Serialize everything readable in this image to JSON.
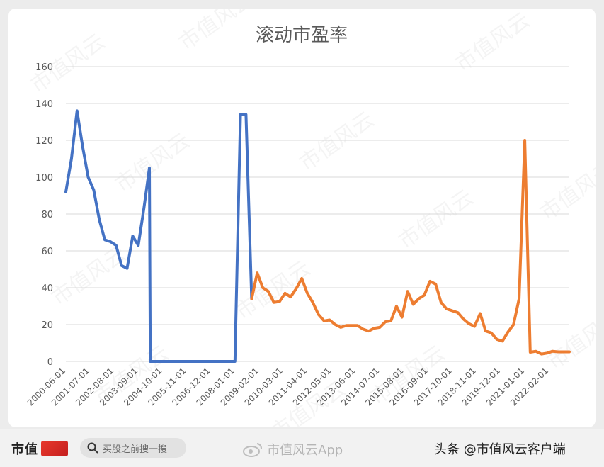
{
  "chart_data": {
    "type": "line",
    "title": "滚动市盈率",
    "ylim": [
      0,
      160
    ],
    "yticks": [
      0,
      20,
      40,
      60,
      80,
      100,
      120,
      140,
      160
    ],
    "xlim": [
      "2000-06-01",
      "2023-01-01"
    ],
    "xticks": [
      "2000-06-01",
      "2001-07-01",
      "2002-08-01",
      "2003-09-01",
      "2004-10-01",
      "2005-11-01",
      "2006-12-01",
      "2008-01-01",
      "2009-02-01",
      "2010-03-01",
      "2011-04-01",
      "2012-05-01",
      "2013-06-01",
      "2014-07-01",
      "2015-08-01",
      "2016-09-01",
      "2017-10-01",
      "2018-11-01",
      "2019-12-01",
      "2021-01-01",
      "2022-02-01"
    ],
    "grid": true,
    "series": [
      {
        "color": "#4472c4",
        "points": [
          [
            "2000-06-01",
            92
          ],
          [
            "2000-09-01",
            110
          ],
          [
            "2000-12-01",
            136
          ],
          [
            "2001-03-01",
            117
          ],
          [
            "2001-06-01",
            100
          ],
          [
            "2001-09-01",
            93
          ],
          [
            "2001-12-01",
            77
          ],
          [
            "2002-03-01",
            66
          ],
          [
            "2002-06-01",
            65
          ],
          [
            "2002-09-01",
            63
          ],
          [
            "2002-12-01",
            52
          ],
          [
            "2003-03-01",
            50.5
          ],
          [
            "2003-06-01",
            68
          ],
          [
            "2003-09-01",
            63
          ],
          [
            "2003-12-01",
            83
          ],
          [
            "2004-03-01",
            105
          ],
          [
            "2004-03-15",
            0
          ],
          [
            "2008-01-01",
            0
          ],
          [
            "2008-04-01",
            134
          ],
          [
            "2008-07-01",
            134
          ],
          [
            "2008-10-01",
            34
          ]
        ]
      },
      {
        "color": "#ed7d31",
        "points": [
          [
            "2008-10-01",
            34
          ],
          [
            "2009-01-01",
            48
          ],
          [
            "2009-04-01",
            40
          ],
          [
            "2009-07-01",
            38
          ],
          [
            "2009-10-01",
            32
          ],
          [
            "2010-01-01",
            32.5
          ],
          [
            "2010-04-01",
            37
          ],
          [
            "2010-07-01",
            35
          ],
          [
            "2010-10-01",
            39.5
          ],
          [
            "2011-01-01",
            45
          ],
          [
            "2011-04-01",
            37
          ],
          [
            "2011-07-01",
            32
          ],
          [
            "2011-10-01",
            25.5
          ],
          [
            "2012-01-01",
            22
          ],
          [
            "2012-04-01",
            22.5
          ],
          [
            "2012-07-01",
            20
          ],
          [
            "2012-10-01",
            18.5
          ],
          [
            "2013-01-01",
            19.5
          ],
          [
            "2013-04-01",
            19.5
          ],
          [
            "2013-07-01",
            19.5
          ],
          [
            "2013-10-01",
            17.5
          ],
          [
            "2014-01-01",
            16.5
          ],
          [
            "2014-04-01",
            18
          ],
          [
            "2014-07-01",
            18.5
          ],
          [
            "2014-10-01",
            21.5
          ],
          [
            "2015-01-01",
            22
          ],
          [
            "2015-04-01",
            30
          ],
          [
            "2015-07-01",
            24
          ],
          [
            "2015-10-01",
            38
          ],
          [
            "2016-01-01",
            31
          ],
          [
            "2016-04-01",
            34
          ],
          [
            "2016-07-01",
            36
          ],
          [
            "2016-10-01",
            43.5
          ],
          [
            "2017-01-01",
            42
          ],
          [
            "2017-04-01",
            32
          ],
          [
            "2017-07-01",
            28.5
          ],
          [
            "2017-10-01",
            27.5
          ],
          [
            "2018-01-01",
            26.5
          ],
          [
            "2018-04-01",
            23
          ],
          [
            "2018-07-01",
            20.5
          ],
          [
            "2018-10-01",
            19
          ],
          [
            "2019-01-01",
            26
          ],
          [
            "2019-04-01",
            16.5
          ],
          [
            "2019-07-01",
            15.5
          ],
          [
            "2019-10-01",
            12
          ],
          [
            "2020-01-01",
            11
          ],
          [
            "2020-04-01",
            16
          ],
          [
            "2020-07-01",
            20
          ],
          [
            "2020-10-01",
            34
          ],
          [
            "2021-01-01",
            120
          ],
          [
            "2021-04-01",
            5
          ],
          [
            "2021-07-01",
            5.5
          ],
          [
            "2021-10-01",
            4
          ],
          [
            "2022-01-01",
            4.5
          ],
          [
            "2022-04-01",
            5.5
          ],
          [
            "2022-07-01",
            5.2
          ],
          [
            "2022-10-01",
            5.2
          ],
          [
            "2023-01-01",
            5.2
          ]
        ]
      }
    ]
  },
  "footer": {
    "brand": "市值",
    "search_placeholder": "买股之前搜一搜",
    "weibo_watermark": "市值风云App",
    "byline": "头条 @市值风云客户端"
  },
  "watermark_text": "市值风云",
  "colors": {
    "grid": "#d9d9d9",
    "axis_text": "#595959",
    "title": "#595959"
  }
}
